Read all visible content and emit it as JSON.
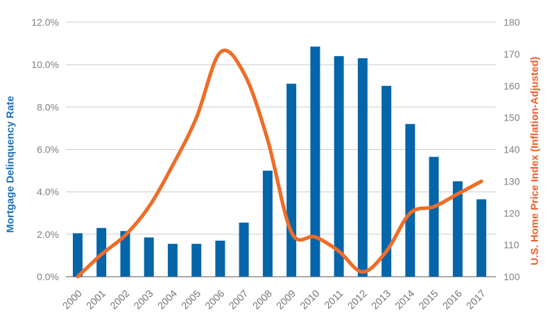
{
  "chart_data": {
    "type": "combo",
    "title": "",
    "categories": [
      "2000",
      "2001",
      "2002",
      "2003",
      "2004",
      "2005",
      "2006",
      "2007",
      "2008",
      "2009",
      "2010",
      "2011",
      "2012",
      "2013",
      "2014",
      "2015",
      "2016",
      "2017"
    ],
    "series": [
      {
        "name": "Mortgage Delinquency Rate",
        "type": "bar",
        "axis": "left",
        "unit": "percent",
        "color": "#0565a9",
        "values": [
          2.05,
          2.3,
          2.15,
          1.85,
          1.55,
          1.55,
          1.7,
          2.55,
          5.0,
          9.1,
          10.85,
          10.4,
          10.3,
          9.0,
          7.2,
          5.65,
          4.5,
          3.65
        ]
      },
      {
        "name": "U.S. Home Price Index (Inflation-Adjusted)",
        "type": "line",
        "axis": "right",
        "unit": "index",
        "color": "#ee6d28",
        "values": [
          100,
          107,
          113,
          122,
          135,
          150,
          170.5,
          164,
          143,
          114,
          112.5,
          108,
          101.5,
          108,
          120,
          122,
          126,
          130
        ]
      }
    ],
    "left_axis": {
      "title": "Mortgage Delinquency Rate",
      "title_color": "#1b70b8",
      "min": 0,
      "max": 12,
      "tick_values": [
        0,
        2,
        4,
        6,
        8,
        10,
        12
      ],
      "tick_labels": [
        "0.0%",
        "2.0%",
        "4.0%",
        "6.0%",
        "8.0%",
        "10.0%",
        "12.0%"
      ]
    },
    "right_axis": {
      "title": "U.S. Home Price Index (Inflation-Adjusted)",
      "title_color": "#f15d2b",
      "min": 100,
      "max": 180,
      "tick_values": [
        100,
        110,
        120,
        130,
        140,
        150,
        160,
        170,
        180
      ],
      "tick_labels": [
        "100",
        "110",
        "120",
        "130",
        "140",
        "150",
        "160",
        "170",
        "180"
      ]
    },
    "styles": {
      "tick_color": "#7f7f7f",
      "x_tick_color": "#767676",
      "gridline_color": "#cccccc",
      "baseline_color": "#8c8c8c",
      "background": "#ffffff"
    },
    "grid": "horizontal",
    "legend_position": "none"
  }
}
